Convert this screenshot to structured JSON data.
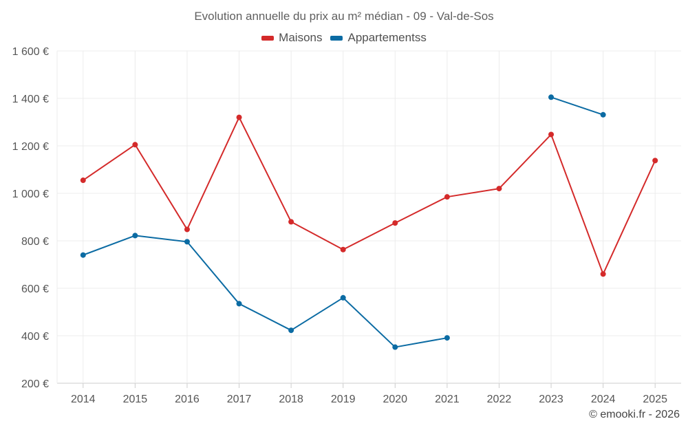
{
  "chart_data": {
    "type": "line",
    "title": "Evolution annuelle du prix au m² médian - 09 - Val-de-Sos",
    "categories": [
      "2014",
      "2015",
      "2016",
      "2017",
      "2018",
      "2019",
      "2020",
      "2021",
      "2022",
      "2023",
      "2024",
      "2025"
    ],
    "series": [
      {
        "name": "Maisons",
        "color": "#d42a2a",
        "values": [
          1055,
          1205,
          848,
          1320,
          880,
          763,
          875,
          985,
          1020,
          1248,
          660,
          1138
        ]
      },
      {
        "name": "Appartementss",
        "color": "#0b6ba3",
        "values": [
          740,
          822,
          796,
          535,
          423,
          560,
          352,
          391,
          null,
          1405,
          1331,
          null
        ]
      }
    ],
    "ylim": [
      200,
      1600
    ],
    "yticks": [
      200,
      400,
      600,
      800,
      1000,
      1200,
      1400,
      1600
    ],
    "ytick_labels": [
      "200 €",
      "400 €",
      "600 €",
      "800 €",
      "1 000 €",
      "1 200 €",
      "1 400 €",
      "1 600 €"
    ],
    "xlabel": "",
    "ylabel": "",
    "grid": true,
    "legend_position": "top-center"
  },
  "credit": "© emooki.fr - 2026"
}
